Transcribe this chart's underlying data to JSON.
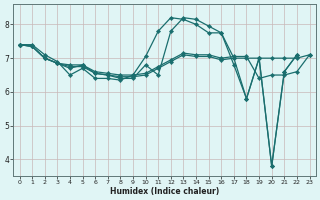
{
  "xlabel": "Humidex (Indice chaleur)",
  "bg_color": "#e0f5f5",
  "grid_color": "#c8b8b8",
  "line_color": "#1a6e6e",
  "x_ticks": [
    0,
    1,
    2,
    3,
    4,
    5,
    6,
    7,
    8,
    9,
    10,
    11,
    12,
    13,
    14,
    15,
    16,
    17,
    18,
    19,
    20,
    21,
    22,
    23
  ],
  "ylim": [
    3.5,
    8.6
  ],
  "xlim": [
    -0.5,
    23.5
  ],
  "series": [
    [
      7.4,
      7.4,
      7.1,
      6.9,
      6.5,
      6.7,
      6.4,
      6.4,
      6.35,
      6.5,
      7.05,
      7.8,
      8.2,
      8.15,
      8.0,
      7.75,
      7.75,
      7.0,
      5.8,
      7.0,
      3.8,
      6.6,
      7.1,
      null
    ],
    [
      7.4,
      7.35,
      7.0,
      6.85,
      6.75,
      6.75,
      6.55,
      6.5,
      6.45,
      6.45,
      6.5,
      6.7,
      6.9,
      7.1,
      7.05,
      7.05,
      6.95,
      7.0,
      7.0,
      7.0,
      7.0,
      7.0,
      7.0,
      7.1
    ],
    [
      7.4,
      7.35,
      7.0,
      6.85,
      6.8,
      6.8,
      6.6,
      6.55,
      6.5,
      6.5,
      6.55,
      6.75,
      6.95,
      7.15,
      7.1,
      7.1,
      7.0,
      7.05,
      7.05,
      6.4,
      6.5,
      6.5,
      6.6,
      7.1
    ],
    [
      7.4,
      7.35,
      7.0,
      6.85,
      6.7,
      6.8,
      6.55,
      6.5,
      6.4,
      6.4,
      6.8,
      6.5,
      7.8,
      8.2,
      8.15,
      7.95,
      7.75,
      6.8,
      5.8,
      7.0,
      3.8,
      6.6,
      7.1,
      null
    ]
  ]
}
